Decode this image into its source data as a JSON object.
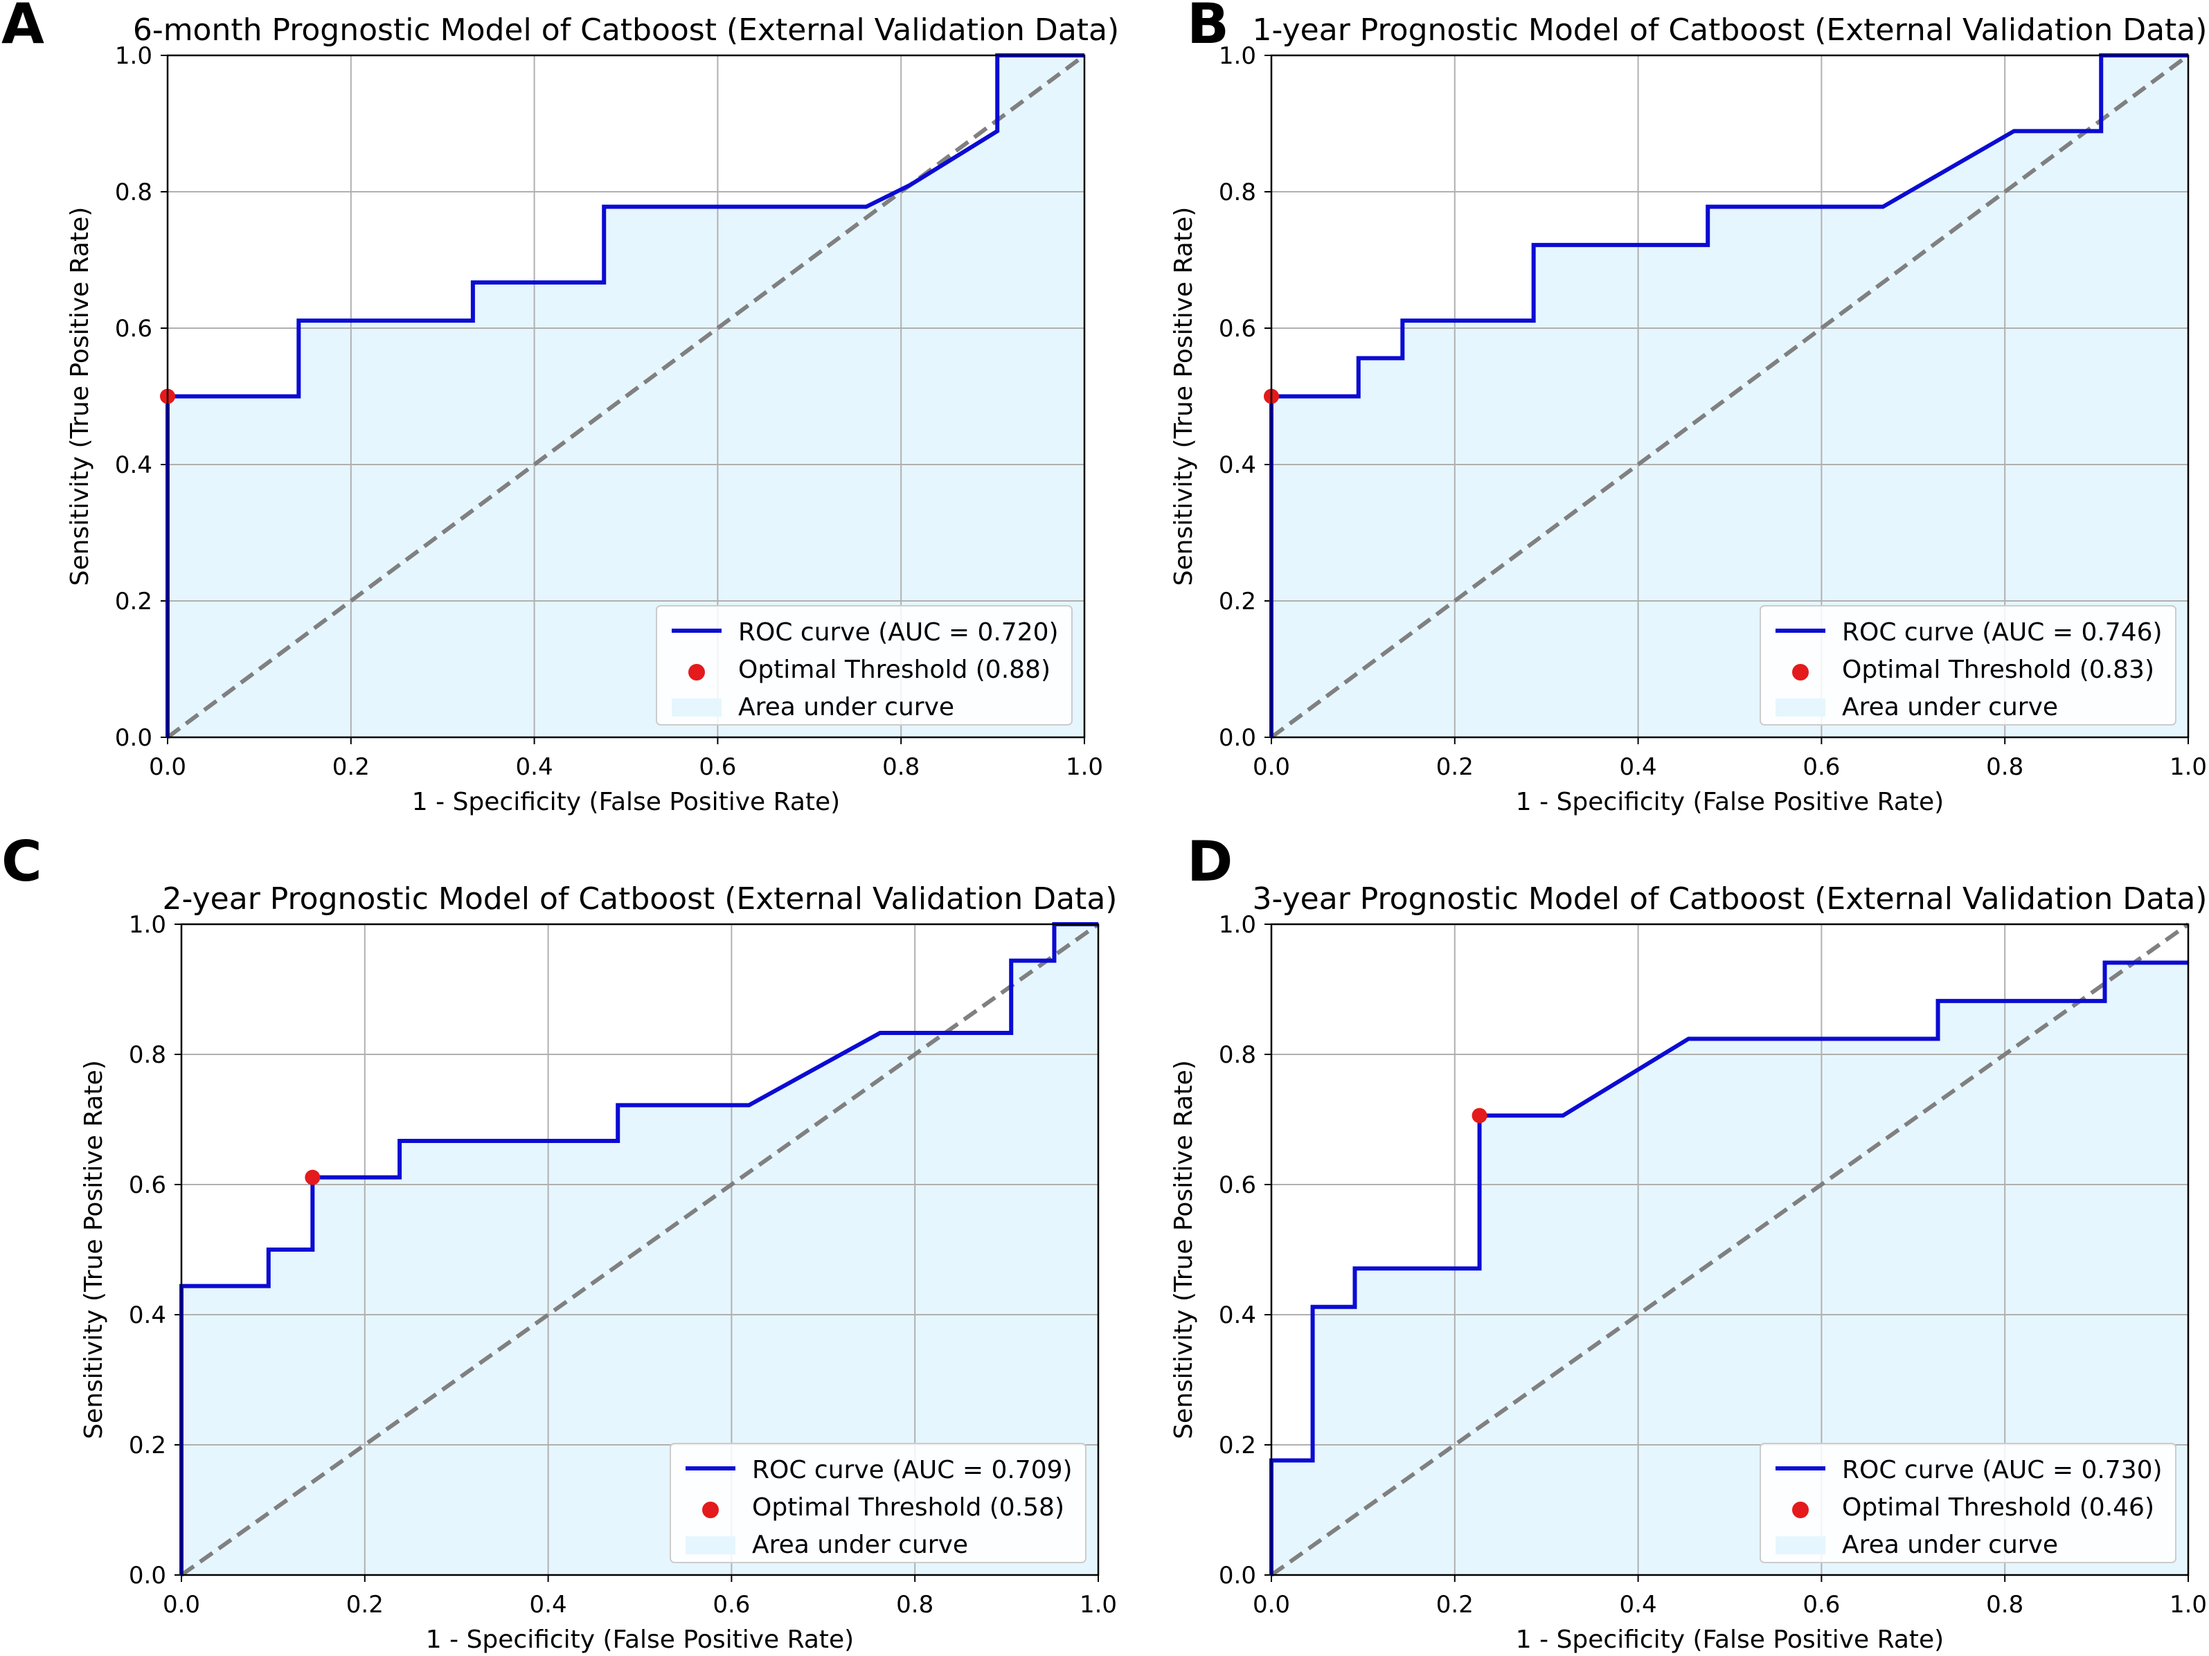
{
  "chart_data": [
    {
      "type": "line",
      "panel_label": "A",
      "title": "6-month Prognostic Model of Catboost (External Validation Data)",
      "xlabel": "1 - Specificity (False Positive Rate)",
      "ylabel": "Sensitivity (True Positive Rate)",
      "xlim": [
        0,
        1
      ],
      "ylim": [
        0,
        1
      ],
      "ticks": [
        "0.0",
        "0.2",
        "0.4",
        "0.6",
        "0.8",
        "1.0"
      ],
      "grid": true,
      "legend_position": "lower-right",
      "legend": [
        "ROC curve (AUC = 0.720)",
        "Optimal Threshold (0.88)",
        "Area under curve"
      ],
      "roc_x": [
        0,
        0,
        0.143,
        0.143,
        0.333,
        0.333,
        0.476,
        0.476,
        0.762,
        0.81,
        0.905,
        0.905,
        1.0
      ],
      "roc_y": [
        0,
        0.5,
        0.5,
        0.611,
        0.611,
        0.667,
        0.667,
        0.778,
        0.778,
        0.81,
        0.889,
        1.0,
        1.0
      ],
      "optimal_point": [
        0,
        0.5
      ],
      "colors": {
        "roc": "#0b0bd3",
        "point": "#e41a1c",
        "fill": "#e6f6fe",
        "diagonal": "#808080"
      }
    },
    {
      "type": "line",
      "panel_label": "B",
      "title": "1-year Prognostic Model of Catboost (External Validation Data)",
      "xlabel": "1 - Specificity (False Positive Rate)",
      "ylabel": "Sensitivity (True Positive Rate)",
      "xlim": [
        0,
        1
      ],
      "ylim": [
        0,
        1
      ],
      "ticks": [
        "0.0",
        "0.2",
        "0.4",
        "0.6",
        "0.8",
        "1.0"
      ],
      "grid": true,
      "legend_position": "lower-right",
      "legend": [
        "ROC curve (AUC = 0.746)",
        "Optimal Threshold (0.83)",
        "Area under curve"
      ],
      "roc_x": [
        0,
        0,
        0.095,
        0.095,
        0.143,
        0.143,
        0.286,
        0.286,
        0.476,
        0.476,
        0.667,
        0.81,
        0.905,
        0.905,
        1.0
      ],
      "roc_y": [
        0,
        0.5,
        0.5,
        0.556,
        0.556,
        0.611,
        0.611,
        0.722,
        0.722,
        0.778,
        0.778,
        0.889,
        0.889,
        1.0,
        1.0
      ],
      "optimal_point": [
        0,
        0.5
      ],
      "colors": {
        "roc": "#0b0bd3",
        "point": "#e41a1c",
        "fill": "#e6f6fe",
        "diagonal": "#808080"
      }
    },
    {
      "type": "line",
      "panel_label": "C",
      "title": "2-year Prognostic Model of Catboost (External Validation Data)",
      "xlabel": "1 - Specificity (False Positive Rate)",
      "ylabel": "Sensitivity (True Positive Rate)",
      "xlim": [
        0,
        1
      ],
      "ylim": [
        0,
        1
      ],
      "ticks": [
        "0.0",
        "0.2",
        "0.4",
        "0.6",
        "0.8",
        "1.0"
      ],
      "grid": true,
      "legend_position": "lower-right",
      "legend": [
        "ROC curve (AUC = 0.709)",
        "Optimal Threshold (0.58)",
        "Area under curve"
      ],
      "roc_x": [
        0,
        0,
        0.095,
        0.095,
        0.143,
        0.143,
        0.238,
        0.238,
        0.476,
        0.476,
        0.619,
        0.762,
        0.905,
        0.905,
        0.952,
        0.952,
        1.0
      ],
      "roc_y": [
        0,
        0.444,
        0.444,
        0.5,
        0.5,
        0.611,
        0.611,
        0.667,
        0.667,
        0.722,
        0.722,
        0.833,
        0.833,
        0.944,
        0.944,
        1.0,
        1.0
      ],
      "optimal_point": [
        0.143,
        0.611
      ],
      "colors": {
        "roc": "#0b0bd3",
        "point": "#e41a1c",
        "fill": "#e6f6fe",
        "diagonal": "#808080"
      }
    },
    {
      "type": "line",
      "panel_label": "D",
      "title": "3-year Prognostic Model of Catboost (External Validation Data)",
      "xlabel": "1 - Specificity (False Positive Rate)",
      "ylabel": "Sensitivity (True Positive Rate)",
      "xlim": [
        0,
        1
      ],
      "ylim": [
        0,
        1
      ],
      "ticks": [
        "0.0",
        "0.2",
        "0.4",
        "0.6",
        "0.8",
        "1.0"
      ],
      "grid": true,
      "legend_position": "lower-right",
      "legend": [
        "ROC curve (AUC = 0.730)",
        "Optimal Threshold (0.46)",
        "Area under curve"
      ],
      "roc_x": [
        0,
        0,
        0.045,
        0.045,
        0.091,
        0.091,
        0.227,
        0.227,
        0.318,
        0.455,
        0.727,
        0.727,
        0.909,
        0.909,
        1.0
      ],
      "roc_y": [
        0,
        0.176,
        0.176,
        0.412,
        0.412,
        0.471,
        0.471,
        0.706,
        0.706,
        0.824,
        0.824,
        0.882,
        0.882,
        0.941,
        0.941
      ],
      "optimal_point": [
        0.227,
        0.706
      ],
      "colors": {
        "roc": "#0b0bd3",
        "point": "#e41a1c",
        "fill": "#e6f6fe",
        "diagonal": "#808080"
      }
    }
  ]
}
